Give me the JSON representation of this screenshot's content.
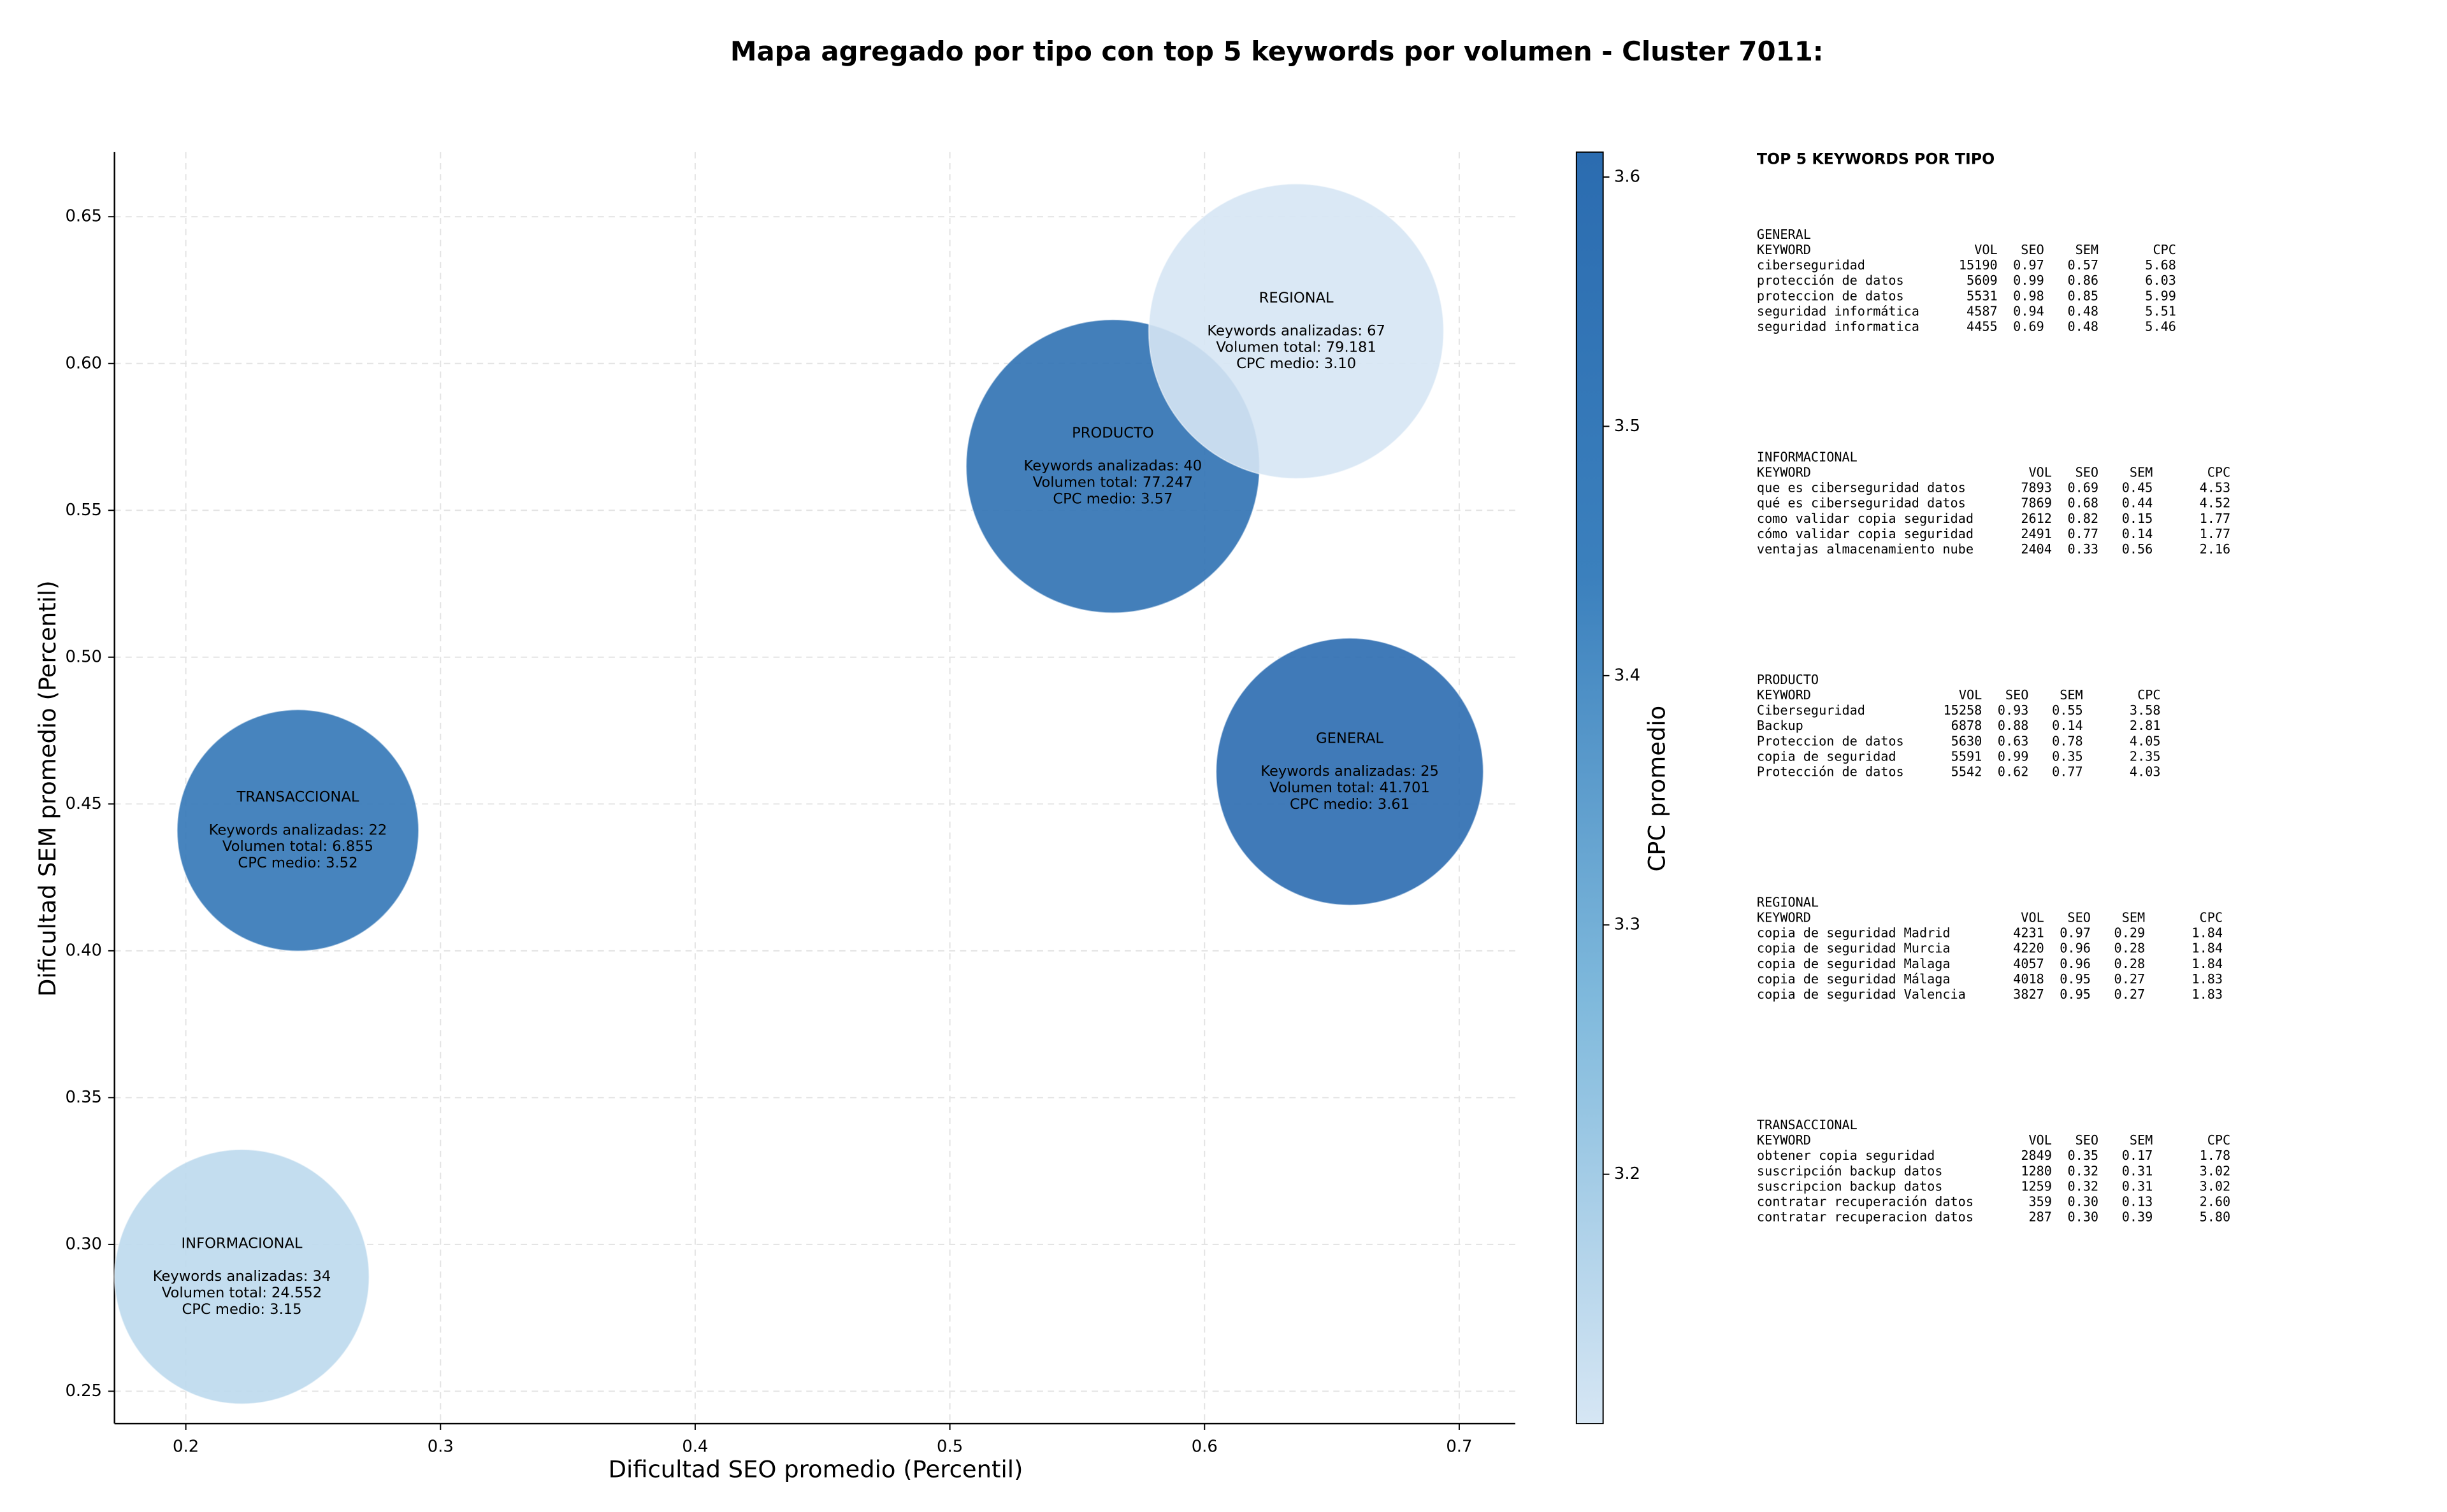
{
  "chart_data": {
    "type": "bubble",
    "title": "Mapa agregado por tipo con top 5 keywords por volumen - Cluster 7011:",
    "x_label": "Dificultad SEO promedio (Percentil)",
    "y_label": "Dificultad SEM promedio (Percentil)",
    "categories": [
      "GENERAL",
      "INFORMACIONAL",
      "PRODUCTO",
      "REGIONAL",
      "TRANSACCIONAL"
    ],
    "x": [
      0.657,
      0.222,
      0.564,
      0.636,
      0.244
    ],
    "y": [
      0.461,
      0.289,
      0.565,
      0.611,
      0.441
    ],
    "sizes": [
      41701,
      24552,
      77247,
      79181,
      6855
    ],
    "color_values": [
      3.61,
      3.15,
      3.57,
      3.1,
      3.52
    ],
    "annotations": [
      [
        "Keywords analizadas: 25",
        "Volumen total: 41.701",
        "CPC medio: 3.61"
      ],
      [
        "Keywords analizadas: 34",
        "Volumen total: 24.552",
        "CPC medio: 3.15"
      ],
      [
        "Keywords analizadas: 40",
        "Volumen total: 77.247",
        "CPC medio: 3.57"
      ],
      [
        "Keywords analizadas: 67",
        "Volumen total: 79.181",
        "CPC medio: 3.10"
      ],
      [
        "Keywords analizadas: 22",
        "Volumen total: 6.855",
        "CPC medio: 3.52"
      ]
    ],
    "colormap": [
      "#d6e6f4",
      "#7fb9dc",
      "#3b80bd",
      "#2b6cb0"
    ],
    "xlim": [
      0.172,
      0.722
    ],
    "ylim": [
      0.239,
      0.672
    ],
    "xticks": [
      0.2,
      0.3,
      0.4,
      0.5,
      0.6,
      0.7
    ],
    "yticks": [
      0.25,
      {
        "value": 0.3,
        "label": "0.30"
      },
      0.35,
      {
        "value": 0.4,
        "label": "0.40"
      },
      0.45,
      {
        "value": 0.5,
        "label": "0.50"
      },
      0.55,
      {
        "value": 0.6,
        "label": "0.60"
      },
      0.65
    ],
    "grid": true,
    "colorbar": {
      "label": "CPC promedio",
      "clim": [
        3.1,
        3.61
      ],
      "ticks": [
        3.2,
        3.3,
        3.4,
        3.5,
        3.6
      ]
    }
  },
  "keyword_panel": {
    "title": "TOP 5 KEYWORDS POR TIPO",
    "columns": [
      "KEYWORD",
      "VOL",
      "SEO",
      "SEM",
      "CPC"
    ],
    "sections": [
      {
        "name": "GENERAL",
        "rows": [
          [
            "ciberseguridad",
            "15190",
            "0.97",
            "0.57",
            "5.68"
          ],
          [
            "protección de datos",
            "5609",
            "0.99",
            "0.86",
            "6.03"
          ],
          [
            "proteccion de datos",
            "5531",
            "0.98",
            "0.85",
            "5.99"
          ],
          [
            "seguridad informática",
            "4587",
            "0.94",
            "0.48",
            "5.51"
          ],
          [
            "seguridad informatica",
            "4455",
            "0.69",
            "0.48",
            "5.46"
          ]
        ]
      },
      {
        "name": "INFORMACIONAL",
        "rows": [
          [
            "que es ciberseguridad datos",
            "7893",
            "0.69",
            "0.45",
            "4.53"
          ],
          [
            "qué es ciberseguridad datos",
            "7869",
            "0.68",
            "0.44",
            "4.52"
          ],
          [
            "como validar copia seguridad",
            "2612",
            "0.82",
            "0.15",
            "1.77"
          ],
          [
            "cómo validar copia seguridad",
            "2491",
            "0.77",
            "0.14",
            "1.77"
          ],
          [
            "ventajas almacenamiento nube",
            "2404",
            "0.33",
            "0.56",
            "2.16"
          ]
        ]
      },
      {
        "name": "PRODUCTO",
        "rows": [
          [
            "Ciberseguridad",
            "15258",
            "0.93",
            "0.55",
            "3.58"
          ],
          [
            "Backup",
            "6878",
            "0.88",
            "0.14",
            "2.81"
          ],
          [
            "Proteccion de datos",
            "5630",
            "0.63",
            "0.78",
            "4.05"
          ],
          [
            "copia de seguridad",
            "5591",
            "0.99",
            "0.35",
            "2.35"
          ],
          [
            "Protección de datos",
            "5542",
            "0.62",
            "0.77",
            "4.03"
          ]
        ]
      },
      {
        "name": "REGIONAL",
        "rows": [
          [
            "copia de seguridad Madrid",
            "4231",
            "0.97",
            "0.29",
            "1.84"
          ],
          [
            "copia de seguridad Murcia",
            "4220",
            "0.96",
            "0.28",
            "1.84"
          ],
          [
            "copia de seguridad Malaga",
            "4057",
            "0.96",
            "0.28",
            "1.84"
          ],
          [
            "copia de seguridad Málaga",
            "4018",
            "0.95",
            "0.27",
            "1.83"
          ],
          [
            "copia de seguridad Valencia",
            "3827",
            "0.95",
            "0.27",
            "1.83"
          ]
        ]
      },
      {
        "name": "TRANSACCIONAL",
        "rows": [
          [
            "obtener copia seguridad",
            "2849",
            "0.35",
            "0.17",
            "1.78"
          ],
          [
            "suscripción backup datos",
            "1280",
            "0.32",
            "0.31",
            "3.02"
          ],
          [
            "suscripcion backup datos",
            "1259",
            "0.32",
            "0.31",
            "3.02"
          ],
          [
            "contratar recuperación datos",
            "359",
            "0.30",
            "0.13",
            "2.60"
          ],
          [
            "contratar recuperacion datos",
            "287",
            "0.30",
            "0.39",
            "5.80"
          ]
        ]
      }
    ]
  }
}
